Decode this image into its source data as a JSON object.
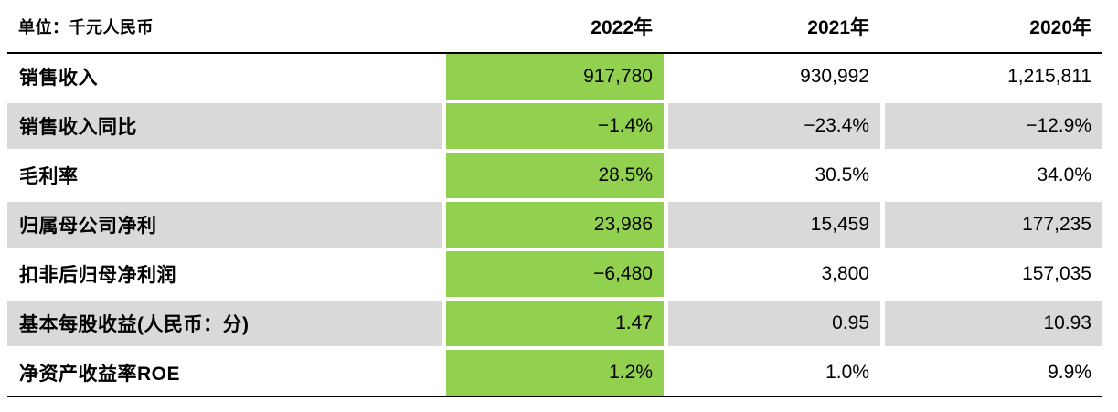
{
  "meta": {
    "unit_label": "单位：千元人民币"
  },
  "colors": {
    "highlight": "#92d050",
    "zebra_gray": "#d9d9d9",
    "border": "#000000",
    "text": "#000000"
  },
  "chart_data": {
    "type": "table",
    "unit": "单位：千元人民币",
    "columns": [
      "",
      "2022年",
      "2021年",
      "2020年"
    ],
    "highlighted_column": "2022年",
    "zebra_rows": [
      1,
      3,
      5
    ],
    "rows": [
      {
        "label": "销售收入",
        "values": [
          "917,780",
          "930,992",
          "1,215,811"
        ]
      },
      {
        "label": "销售收入同比",
        "values": [
          "−1.4%",
          "−23.4%",
          "−12.9%"
        ]
      },
      {
        "label": "毛利率",
        "values": [
          "28.5%",
          "30.5%",
          "34.0%"
        ]
      },
      {
        "label": "归属母公司净利",
        "values": [
          "23,986",
          "15,459",
          "177,235"
        ]
      },
      {
        "label": "扣非后归母净利润",
        "values": [
          "−6,480",
          "3,800",
          "157,035"
        ]
      },
      {
        "label": "基本每股收益(人民币：分)",
        "values": [
          "1.47",
          "0.95",
          "10.93"
        ]
      },
      {
        "label": "净资产收益率ROE",
        "values": [
          "1.2%",
          "1.0%",
          "9.9%"
        ]
      }
    ]
  }
}
